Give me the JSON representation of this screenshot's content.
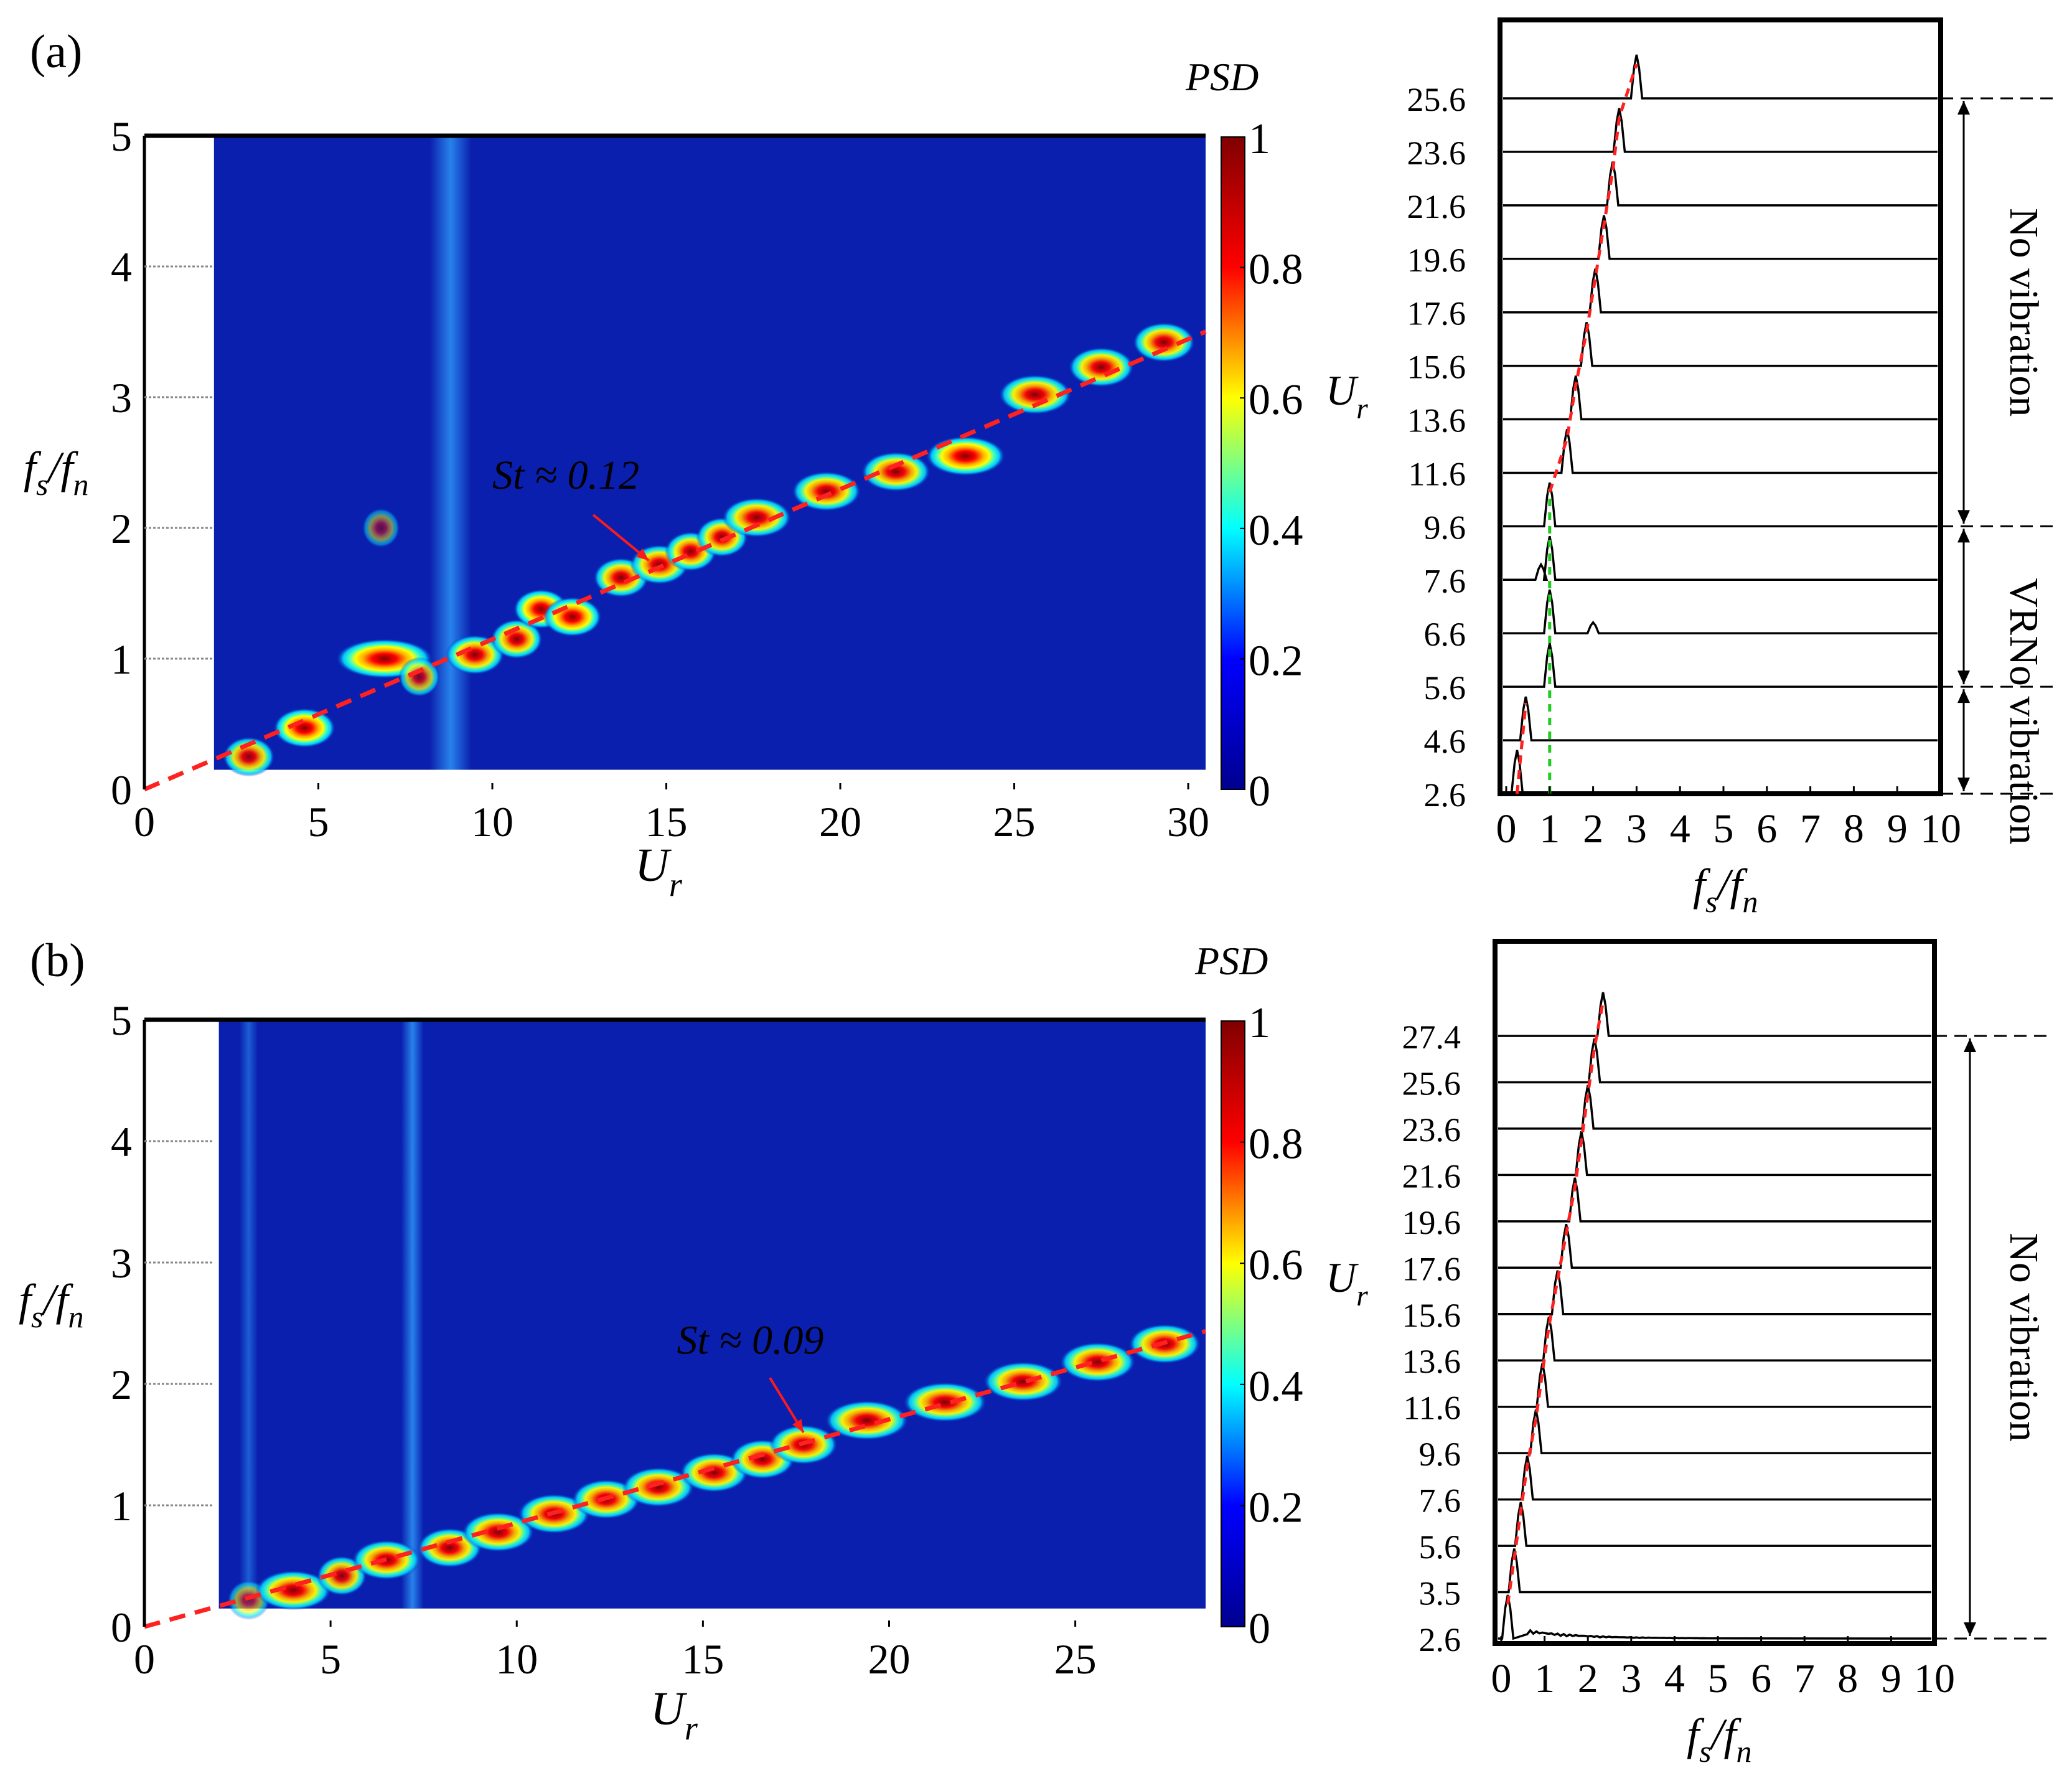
{
  "colors": {
    "jet": [
      "#00008f",
      "#0000ff",
      "#00ffff",
      "#ffff00",
      "#ff0000",
      "#800000"
    ],
    "background": "#0a1fae",
    "trend": "#ff2020",
    "annotation": "#ff1a1a",
    "vr": "#22cc22",
    "text": "#000000"
  },
  "panels": [
    {
      "label": "(a)",
      "psd_title": "PSD",
      "chart_data": {
        "type": "heatmap",
        "xlabel_main": "U",
        "xlabel_sub": "r",
        "ylabel": {
          "f1": "f",
          "s1": "s",
          "f2": "/f",
          "s2": "n"
        },
        "xlim": [
          0,
          30.5
        ],
        "ylim": [
          0,
          5
        ],
        "data_xlim": [
          2.0,
          30.5
        ],
        "data_ylim": [
          0.15,
          5
        ],
        "xticks": [
          0,
          5,
          10,
          15,
          20,
          25,
          30
        ],
        "yticks": [
          0,
          1,
          2,
          3,
          4,
          5
        ],
        "colorbar": {
          "min": 0,
          "max": 1,
          "ticks": [
            0,
            0.2,
            0.4,
            0.6,
            0.8,
            1
          ],
          "tick_labels": [
            "0",
            "0.2",
            "0.4",
            "0.6",
            "0.8",
            "1"
          ]
        },
        "trend": {
          "slope": 0.1148,
          "label": "St ≈ 0.12",
          "label_at": [
            10.0,
            2.3
          ],
          "arrow_from": [
            12.9,
            2.1
          ],
          "arrow_to": [
            14.5,
            1.75
          ]
        },
        "vertical_band": {
          "x": 8.8,
          "width": 1.2,
          "intensity": 0.35
        },
        "blobs": [
          [
            3.0,
            0.25,
            0.35,
            0.9
          ],
          [
            4.6,
            0.47,
            0.5,
            1.0
          ],
          [
            6.9,
            1.0,
            1.0,
            1.0
          ],
          [
            7.9,
            0.86,
            0.2,
            0.75
          ],
          [
            9.5,
            1.03,
            0.45,
            0.95
          ],
          [
            10.7,
            1.15,
            0.35,
            0.95
          ],
          [
            11.4,
            1.38,
            0.4,
            1.0
          ],
          [
            12.3,
            1.32,
            0.45,
            1.0
          ],
          [
            13.7,
            1.62,
            0.4,
            0.95
          ],
          [
            14.8,
            1.72,
            0.45,
            0.95
          ],
          [
            15.7,
            1.82,
            0.35,
            0.95
          ],
          [
            16.6,
            1.93,
            0.35,
            0.95
          ],
          [
            17.6,
            2.08,
            0.6,
            0.95
          ],
          [
            19.6,
            2.28,
            0.6,
            0.95
          ],
          [
            21.6,
            2.43,
            0.6,
            0.95
          ],
          [
            23.6,
            2.55,
            0.75,
            1.0
          ],
          [
            25.6,
            3.02,
            0.65,
            0.95
          ],
          [
            27.5,
            3.23,
            0.55,
            0.95
          ],
          [
            29.3,
            3.42,
            0.5,
            0.95
          ],
          [
            6.8,
            2.0,
            0.15,
            0.5
          ]
        ]
      },
      "spectra": {
        "ylabel_main": "U",
        "ylabel_sub": "r",
        "xlabel": {
          "f1": "f",
          "s1": "s",
          "f2": "/f",
          "s2": "n"
        },
        "xticks": [
          "0",
          "1",
          "2",
          "3",
          "4",
          "5",
          "6",
          "7",
          "8",
          "9",
          "10"
        ],
        "rows": [
          {
            "label": "2.6",
            "peaks": [
              [
                0.25,
                1.0
              ]
            ]
          },
          {
            "label": "4.6",
            "peaks": [
              [
                0.45,
                1.0
              ]
            ]
          },
          {
            "label": "5.6",
            "peaks": [
              [
                1.0,
                1.0
              ]
            ]
          },
          {
            "label": "6.6",
            "peaks": [
              [
                1.0,
                1.0
              ],
              [
                2.0,
                0.25
              ]
            ]
          },
          {
            "label": "7.6",
            "peaks": [
              [
                1.0,
                1.0
              ],
              [
                0.8,
                0.35
              ]
            ]
          },
          {
            "label": "9.6",
            "peaks": [
              [
                1.0,
                1.0
              ]
            ]
          },
          {
            "label": "11.6",
            "peaks": [
              [
                1.4,
                1.0
              ]
            ]
          },
          {
            "label": "13.6",
            "peaks": [
              [
                1.6,
                1.0
              ]
            ]
          },
          {
            "label": "15.6",
            "peaks": [
              [
                1.85,
                1.0
              ]
            ]
          },
          {
            "label": "17.6",
            "peaks": [
              [
                2.05,
                1.0
              ]
            ]
          },
          {
            "label": "19.6",
            "peaks": [
              [
                2.25,
                1.0
              ]
            ]
          },
          {
            "label": "21.6",
            "peaks": [
              [
                2.45,
                1.0
              ]
            ]
          },
          {
            "label": "23.6",
            "peaks": [
              [
                2.6,
                1.0
              ]
            ]
          },
          {
            "label": "25.6",
            "peaks": [
              [
                3.0,
                1.0
              ]
            ]
          }
        ],
        "regions": [
          {
            "text": "No vibration",
            "from": 0,
            "to": 2,
            "color": "#ff1a1a"
          },
          {
            "text": "VR",
            "from": 2,
            "to": 5,
            "color": "#22cc22"
          },
          {
            "text": "No vibration",
            "from": 5,
            "to": 13,
            "color": "#ff1a1a"
          }
        ]
      }
    },
    {
      "label": "(b)",
      "psd_title": "PSD",
      "chart_data": {
        "type": "heatmap",
        "xlabel_main": "U",
        "xlabel_sub": "r",
        "ylabel": {
          "f1": "f",
          "s1": "s",
          "f2": "/f",
          "s2": "n"
        },
        "xlim": [
          0,
          28.5
        ],
        "ylim": [
          0,
          5
        ],
        "data_xlim": [
          2.0,
          28.5
        ],
        "data_ylim": [
          0.15,
          5
        ],
        "xticks": [
          0,
          5,
          10,
          15,
          20,
          25
        ],
        "yticks": [
          0,
          1,
          2,
          3,
          4,
          5
        ],
        "colorbar": {
          "min": 0,
          "max": 1,
          "ticks": [
            0,
            0.2,
            0.4,
            0.6,
            0.8,
            1
          ],
          "tick_labels": [
            "0",
            "0.2",
            "0.4",
            "0.6",
            "0.8",
            "1"
          ]
        },
        "trend": {
          "slope": 0.0854,
          "label": "St ≈ 0.09",
          "label_at": [
            14.3,
            2.25
          ],
          "arrow_from": [
            16.8,
            2.05
          ],
          "arrow_to": [
            17.7,
            1.6
          ]
        },
        "vertical_band": {
          "x": 7.2,
          "width": 0.6,
          "intensity": 0.35
        },
        "vertical_band2": {
          "x": 2.8,
          "width": 0.5,
          "intensity": 0.22
        },
        "blobs": [
          [
            2.8,
            0.22,
            0.2,
            0.6
          ],
          [
            4.0,
            0.3,
            0.65,
            0.95
          ],
          [
            5.3,
            0.42,
            0.3,
            0.9
          ],
          [
            6.5,
            0.55,
            0.55,
            0.95
          ],
          [
            8.2,
            0.65,
            0.5,
            0.95
          ],
          [
            9.5,
            0.78,
            0.6,
            0.95
          ],
          [
            11.0,
            0.93,
            0.6,
            0.95
          ],
          [
            12.4,
            1.05,
            0.55,
            0.95
          ],
          [
            13.8,
            1.15,
            0.6,
            0.95
          ],
          [
            15.3,
            1.27,
            0.55,
            0.95
          ],
          [
            16.6,
            1.38,
            0.5,
            0.95
          ],
          [
            17.7,
            1.5,
            0.55,
            0.95
          ],
          [
            19.4,
            1.7,
            0.75,
            0.95
          ],
          [
            21.5,
            1.85,
            0.75,
            0.95
          ],
          [
            23.6,
            2.02,
            0.7,
            0.95
          ],
          [
            25.6,
            2.18,
            0.65,
            0.95
          ],
          [
            27.4,
            2.33,
            0.6,
            0.95
          ]
        ]
      },
      "spectra": {
        "ylabel_main": "U",
        "ylabel_sub": "r",
        "xlabel": {
          "f1": "f",
          "s1": "s",
          "f2": "/f",
          "s2": "n"
        },
        "xticks": [
          "0",
          "1",
          "2",
          "3",
          "4",
          "5",
          "6",
          "7",
          "8",
          "9",
          "10"
        ],
        "rows": [
          {
            "label": "2.6",
            "peaks": [
              [
                0.15,
                1.0
              ]
            ],
            "noisy": true
          },
          {
            "label": "3.5",
            "peaks": [
              [
                0.3,
                1.0
              ]
            ]
          },
          {
            "label": "5.6",
            "peaks": [
              [
                0.45,
                1.0
              ]
            ]
          },
          {
            "label": "7.6",
            "peaks": [
              [
                0.6,
                1.0
              ]
            ]
          },
          {
            "label": "9.6",
            "peaks": [
              [
                0.8,
                1.0
              ]
            ]
          },
          {
            "label": "11.6",
            "peaks": [
              [
                0.95,
                1.0
              ]
            ]
          },
          {
            "label": "13.6",
            "peaks": [
              [
                1.1,
                1.0
              ]
            ]
          },
          {
            "label": "15.6",
            "peaks": [
              [
                1.3,
                1.0
              ]
            ]
          },
          {
            "label": "17.6",
            "peaks": [
              [
                1.5,
                1.0
              ]
            ]
          },
          {
            "label": "19.6",
            "peaks": [
              [
                1.7,
                1.0
              ]
            ]
          },
          {
            "label": "21.6",
            "peaks": [
              [
                1.85,
                1.0
              ]
            ]
          },
          {
            "label": "23.6",
            "peaks": [
              [
                2.0,
                1.0
              ]
            ]
          },
          {
            "label": "25.6",
            "peaks": [
              [
                2.15,
                1.0
              ]
            ]
          },
          {
            "label": "27.4",
            "peaks": [
              [
                2.35,
                1.0
              ]
            ]
          }
        ],
        "regions": [
          {
            "text": "No vibration",
            "from": 0,
            "to": 13,
            "color": "#ff1a1a"
          }
        ]
      }
    }
  ]
}
